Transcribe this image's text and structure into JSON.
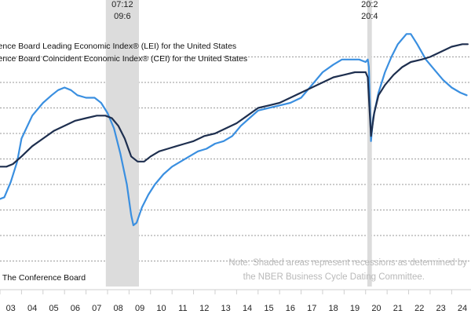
{
  "chart_data": {
    "type": "line",
    "title": "",
    "xlabel": "",
    "ylabel": "",
    "x_ticks": [
      "03",
      "04",
      "05",
      "06",
      "07",
      "08",
      "09",
      "10",
      "11",
      "12",
      "13",
      "14",
      "15",
      "16",
      "17",
      "18",
      "19",
      "20",
      "21",
      "22",
      "23",
      "24"
    ],
    "x_range": [
      2003.0,
      2024.9
    ],
    "y_range": [
      0,
      100
    ],
    "grid": true,
    "legend": [
      "The Conference Board Leading Economic Index® (LEI) for the United States",
      "The Conference Board Coincident Economic Index® (CEI) for the United States"
    ],
    "recessions": [
      {
        "start_label": "07:12",
        "end_label": "09:6",
        "start": 2007.92,
        "end": 2009.46
      },
      {
        "start_label": "20:2",
        "end_label": "20:4",
        "start": 2020.08,
        "end": 2020.29
      }
    ],
    "note": [
      "Note: Shaded areas represent recessions as determined by",
      "the NBER Business Cycle Dating Committee."
    ],
    "source": "Source: The Conference Board",
    "series": [
      {
        "name": "LEI",
        "color": "#3a8fe0",
        "points": [
          [
            2002.9,
            34
          ],
          [
            2003.2,
            35
          ],
          [
            2003.5,
            41
          ],
          [
            2003.8,
            49
          ],
          [
            2004.0,
            58
          ],
          [
            2004.5,
            67
          ],
          [
            2005.0,
            72
          ],
          [
            2005.4,
            75
          ],
          [
            2005.7,
            77
          ],
          [
            2006.0,
            78
          ],
          [
            2006.3,
            77
          ],
          [
            2006.6,
            75
          ],
          [
            2007.0,
            74
          ],
          [
            2007.4,
            74
          ],
          [
            2007.7,
            72
          ],
          [
            2008.0,
            68
          ],
          [
            2008.3,
            62
          ],
          [
            2008.6,
            52
          ],
          [
            2008.9,
            40
          ],
          [
            2009.1,
            28
          ],
          [
            2009.2,
            24
          ],
          [
            2009.35,
            25
          ],
          [
            2009.6,
            31
          ],
          [
            2009.9,
            36
          ],
          [
            2010.2,
            40
          ],
          [
            2010.6,
            44
          ],
          [
            2011.0,
            47
          ],
          [
            2011.4,
            49
          ],
          [
            2011.8,
            51
          ],
          [
            2012.2,
            53
          ],
          [
            2012.6,
            54
          ],
          [
            2013.0,
            56
          ],
          [
            2013.4,
            57
          ],
          [
            2013.8,
            59
          ],
          [
            2014.2,
            63
          ],
          [
            2014.6,
            66
          ],
          [
            2015.0,
            69
          ],
          [
            2015.5,
            70
          ],
          [
            2016.0,
            71
          ],
          [
            2016.5,
            72
          ],
          [
            2017.0,
            74
          ],
          [
            2017.5,
            79
          ],
          [
            2018.0,
            84
          ],
          [
            2018.5,
            87
          ],
          [
            2018.9,
            89
          ],
          [
            2019.3,
            89
          ],
          [
            2019.7,
            89
          ],
          [
            2020.0,
            88
          ],
          [
            2020.1,
            89
          ],
          [
            2020.15,
            86
          ],
          [
            2020.25,
            57
          ],
          [
            2020.35,
            66
          ],
          [
            2020.6,
            76
          ],
          [
            2020.9,
            84
          ],
          [
            2021.2,
            90
          ],
          [
            2021.5,
            95
          ],
          [
            2021.9,
            99
          ],
          [
            2022.1,
            99
          ],
          [
            2022.4,
            95
          ],
          [
            2022.8,
            89
          ],
          [
            2023.2,
            85
          ],
          [
            2023.6,
            81
          ],
          [
            2024.0,
            78
          ],
          [
            2024.4,
            76
          ],
          [
            2024.7,
            75
          ]
        ]
      },
      {
        "name": "CEI",
        "color": "#1e2f4f",
        "points": [
          [
            2002.9,
            47
          ],
          [
            2003.3,
            47
          ],
          [
            2003.6,
            48
          ],
          [
            2004.0,
            51
          ],
          [
            2004.5,
            55
          ],
          [
            2005.0,
            58
          ],
          [
            2005.5,
            61
          ],
          [
            2006.0,
            63
          ],
          [
            2006.5,
            65
          ],
          [
            2007.0,
            66
          ],
          [
            2007.5,
            67
          ],
          [
            2007.9,
            67
          ],
          [
            2008.2,
            66
          ],
          [
            2008.5,
            63
          ],
          [
            2008.8,
            58
          ],
          [
            2009.1,
            51
          ],
          [
            2009.4,
            49
          ],
          [
            2009.7,
            49
          ],
          [
            2010.0,
            51
          ],
          [
            2010.4,
            53
          ],
          [
            2010.8,
            54
          ],
          [
            2011.2,
            55
          ],
          [
            2011.6,
            56
          ],
          [
            2012.0,
            57
          ],
          [
            2012.5,
            59
          ],
          [
            2013.0,
            60
          ],
          [
            2013.5,
            62
          ],
          [
            2014.0,
            64
          ],
          [
            2014.5,
            67
          ],
          [
            2015.0,
            70
          ],
          [
            2015.5,
            71
          ],
          [
            2016.0,
            72
          ],
          [
            2016.5,
            74
          ],
          [
            2017.0,
            76
          ],
          [
            2017.5,
            78
          ],
          [
            2018.0,
            80
          ],
          [
            2018.5,
            82
          ],
          [
            2019.0,
            83
          ],
          [
            2019.5,
            84
          ],
          [
            2020.0,
            84
          ],
          [
            2020.1,
            82
          ],
          [
            2020.25,
            59
          ],
          [
            2020.4,
            68
          ],
          [
            2020.6,
            75
          ],
          [
            2020.9,
            79
          ],
          [
            2021.3,
            83
          ],
          [
            2021.7,
            86
          ],
          [
            2022.1,
            88
          ],
          [
            2022.6,
            89
          ],
          [
            2023.0,
            90
          ],
          [
            2023.5,
            92
          ],
          [
            2024.0,
            94
          ],
          [
            2024.5,
            95
          ],
          [
            2024.75,
            95
          ]
        ]
      }
    ]
  }
}
